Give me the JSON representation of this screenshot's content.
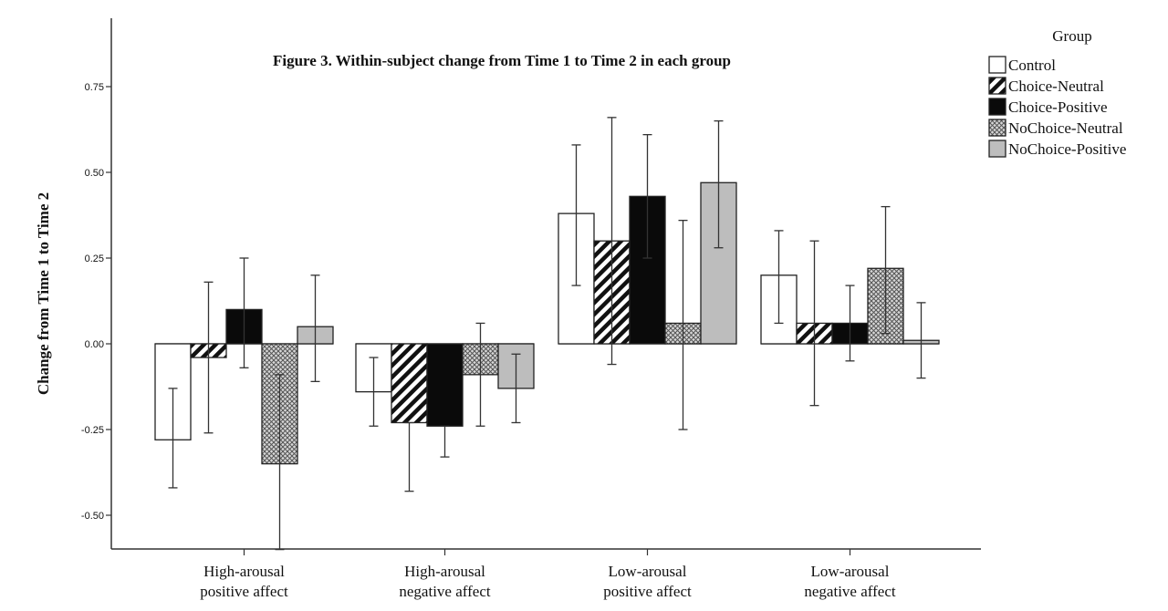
{
  "chart_data": {
    "type": "bar",
    "title": "Figure 3. Within-subject change from Time 1 to Time 2 in each group",
    "ylabel": "Change from Time 1 to Time 2",
    "xlabel": "",
    "ylim": [
      -0.6,
      0.9
    ],
    "yticks": [
      0.75,
      0.5,
      0.25,
      0.0,
      -0.25,
      -0.5
    ],
    "ytick_labels": [
      "0.75",
      "0.50",
      "0.25",
      "0.00",
      "-0.25",
      "-0.50"
    ],
    "categories": [
      [
        "High-arousal",
        "positive affect"
      ],
      [
        "High-arousal",
        "negative affect"
      ],
      [
        "Low-arousal",
        "positive affect"
      ],
      [
        "Low-arousal",
        "negative affect"
      ]
    ],
    "legend_title": "Group",
    "legend_position": "top-right",
    "grid": false,
    "series": [
      {
        "name": "Control",
        "pattern": "empty",
        "values": [
          -0.28,
          -0.14,
          0.38,
          0.2
        ],
        "err_low": [
          -0.42,
          -0.24,
          0.17,
          0.06
        ],
        "err_high": [
          -0.13,
          -0.04,
          0.58,
          0.33
        ]
      },
      {
        "name": "Choice-Neutral",
        "pattern": "diagonal",
        "values": [
          -0.04,
          -0.23,
          0.3,
          0.06
        ],
        "err_low": [
          -0.26,
          -0.43,
          -0.06,
          -0.18
        ],
        "err_high": [
          0.18,
          -0.23,
          0.66,
          0.3
        ]
      },
      {
        "name": "Choice-Positive",
        "pattern": "solid",
        "values": [
          0.1,
          -0.24,
          0.43,
          0.06
        ],
        "err_low": [
          -0.07,
          -0.33,
          0.25,
          -0.05
        ],
        "err_high": [
          0.25,
          -0.24,
          0.61,
          0.17
        ]
      },
      {
        "name": "NoChoice-Neutral",
        "pattern": "crosshatch",
        "values": [
          -0.35,
          -0.09,
          0.06,
          0.22
        ],
        "err_low": [
          -0.6,
          -0.24,
          -0.25,
          0.03
        ],
        "err_high": [
          -0.09,
          0.06,
          0.36,
          0.4
        ]
      },
      {
        "name": "NoChoice-Positive",
        "pattern": "gray",
        "values": [
          0.05,
          -0.13,
          0.47,
          0.01
        ],
        "err_low": [
          -0.11,
          -0.23,
          0.28,
          -0.1
        ],
        "err_high": [
          0.2,
          -0.03,
          0.65,
          0.12
        ]
      }
    ]
  },
  "colors": {
    "solid": "#0a0a0a",
    "gray": "#bdbdbd",
    "empty": "#ffffff",
    "stroke": "#222222"
  }
}
